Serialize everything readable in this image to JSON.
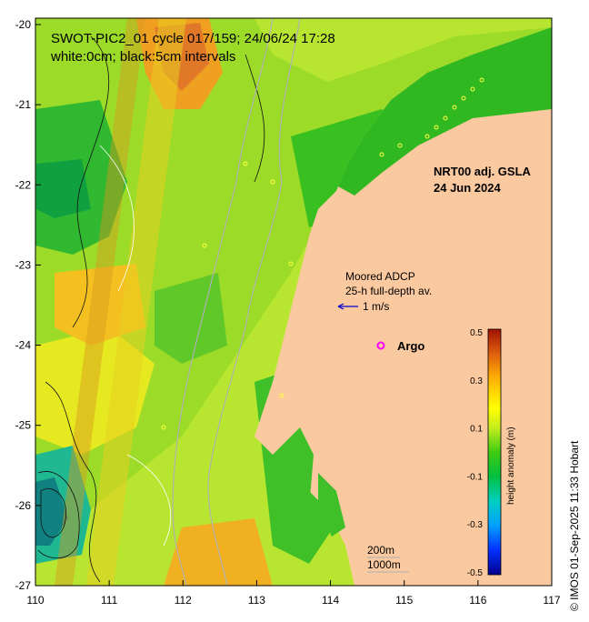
{
  "header": {
    "line1": "SWOT-PIC2_01 cycle 017/159; 24/06/24 17:28",
    "line2": "white:0cm; black:5cm intervals"
  },
  "product": {
    "line1": "NRT00 adj. GSLA",
    "line2": "24 Jun 2024"
  },
  "mooring": {
    "line1": "Moored ADCP",
    "line2": "25-h full-depth av.",
    "scale": "1 m/s"
  },
  "argo": {
    "label": "Argo",
    "symbol": "o",
    "color": "#ff00ff"
  },
  "isobaths": {
    "shallow": "200m",
    "deep": "1000m"
  },
  "axes": {
    "x_ticks": [
      "110",
      "111",
      "112",
      "113",
      "114",
      "115",
      "116",
      "117"
    ],
    "y_ticks": [
      "-20",
      "-21",
      "-22",
      "-23",
      "-24",
      "-25",
      "-26",
      "-27"
    ]
  },
  "colorbar": {
    "title": "height anomaly (m)",
    "ticks": [
      "0.5",
      "0.3",
      "0.1",
      "-0.1",
      "-0.3",
      "-0.5"
    ],
    "range": [
      -0.5,
      0.5
    ],
    "colors": [
      "#00008b",
      "#0000ff",
      "#0080ff",
      "#00ccee",
      "#00c870",
      "#00c000",
      "#50d020",
      "#a0e020",
      "#e8f000",
      "#ffe000",
      "#ffb000",
      "#f08020",
      "#d04000",
      "#a01000"
    ]
  },
  "credit": "© IMOS 01-Sep-2025 11:33 Hobart",
  "colors": {
    "land": "#fac9a0",
    "sea_green": "#40c020",
    "sea_yellow": "#d8ee20"
  }
}
